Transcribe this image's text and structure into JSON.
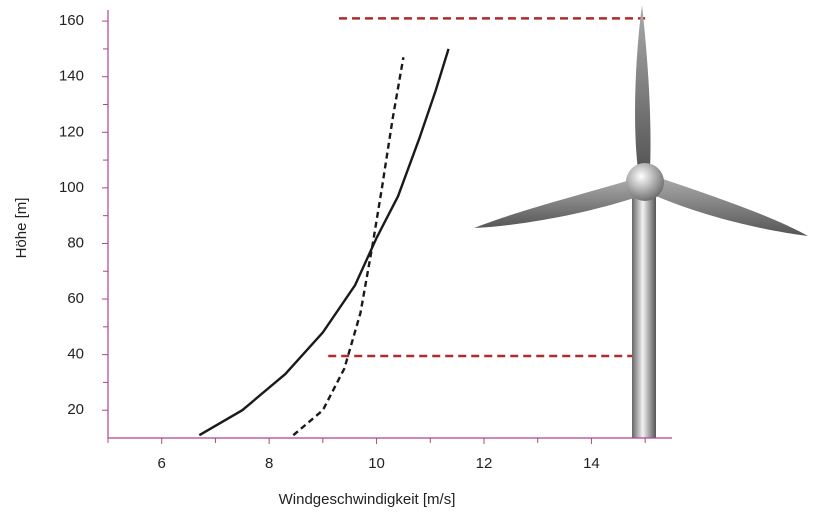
{
  "chart_data": {
    "type": "line",
    "xlabel": "Windgeschwindigkeit [m/s]",
    "ylabel": "Höhe [m]",
    "xlim": [
      5,
      15.5
    ],
    "ylim": [
      10,
      164
    ],
    "xticks": [
      6,
      8,
      10,
      12,
      14
    ],
    "yticks": [
      20,
      40,
      60,
      80,
      100,
      120,
      140,
      160
    ],
    "xminorticks": [
      5,
      7,
      9,
      11,
      13,
      15
    ],
    "yminorticks": [
      30,
      50,
      70,
      90,
      110,
      130,
      150
    ],
    "axis_color": "#b0448c",
    "series": [
      {
        "color": "#1a1a1a",
        "dash": false,
        "x": [
          6.7,
          7.5,
          8.3,
          9.0,
          9.6,
          10.0,
          10.4,
          10.8,
          11.1,
          11.34
        ],
        "values": [
          11,
          20,
          33,
          48,
          65,
          82,
          97,
          118,
          135,
          150
        ]
      },
      {
        "color": "#1a1a1a",
        "dash": true,
        "x": [
          8.45,
          9.0,
          9.4,
          9.7,
          9.93,
          10.1,
          10.3,
          10.5
        ],
        "values": [
          11,
          20,
          35,
          55,
          80,
          100,
          125,
          147
        ]
      }
    ],
    "reference_lines": [
      {
        "y": 161,
        "x": [
          9.3,
          15
        ],
        "color": "#b22a2a"
      },
      {
        "y": 39.5,
        "x": [
          9.1,
          14.8
        ],
        "color": "#b22a2a"
      }
    ]
  }
}
